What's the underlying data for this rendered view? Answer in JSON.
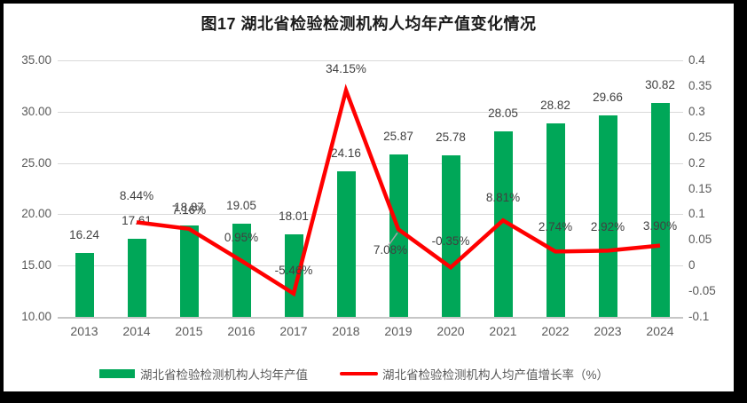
{
  "chart_data": {
    "type": "combo",
    "title": "图17 湖北省检验检测机构人均年产值变化情况",
    "categories": [
      "2013",
      "2014",
      "2015",
      "2016",
      "2017",
      "2018",
      "2019",
      "2020",
      "2021",
      "2022",
      "2023",
      "2024"
    ],
    "series": [
      {
        "name": "湖北省检验检测机构人均年产值",
        "type": "bar",
        "axis": "left",
        "color": "#00A758",
        "values": [
          16.24,
          17.61,
          18.87,
          19.05,
          18.01,
          24.16,
          25.87,
          25.78,
          28.05,
          28.82,
          29.66,
          30.82
        ],
        "labels": [
          "16.24",
          "17.61",
          "18.87",
          "19.05",
          "18.01",
          "24.16",
          "25.87",
          "25.78",
          "28.05",
          "28.82",
          "29.66",
          "30.82"
        ]
      },
      {
        "name": "湖北省检验检测机构人均产值增长率（%）",
        "type": "line",
        "axis": "right",
        "color": "#FF0000",
        "values": [
          null,
          8.44,
          7.16,
          0.95,
          -5.46,
          34.15,
          7.08,
          -0.35,
          8.81,
          2.74,
          2.92,
          3.9
        ],
        "labels": [
          "",
          "8.44%",
          "7.16%",
          "0.95%",
          "-5.46%",
          "34.15%",
          "7.08%",
          "-0.35%",
          "8.81%",
          "2.74%",
          "2.92%",
          "3.90%"
        ]
      }
    ],
    "left_axis": {
      "min": 10,
      "max": 35,
      "ticks": [
        "35.00",
        "30.00",
        "25.00",
        "20.00",
        "15.00",
        "10.00"
      ]
    },
    "right_axis": {
      "min": -0.1,
      "max": 0.4,
      "ticks": [
        "0.4",
        "0.35",
        "0.3",
        "0.25",
        "0.2",
        "0.15",
        "0.1",
        "0.05",
        "0",
        "-0.05",
        "-0.1"
      ]
    },
    "grid": "horizontal",
    "legend_position": "bottom",
    "colors": {
      "grid": "#d9d9d9",
      "axis_text": "#595959",
      "data_label": "#404040",
      "leader_line": "#a6a6a6"
    }
  }
}
